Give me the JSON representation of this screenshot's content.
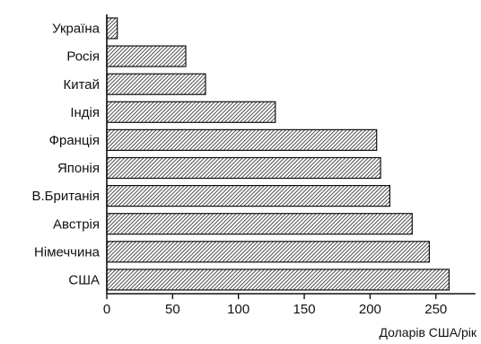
{
  "chart_data": {
    "type": "bar",
    "orientation": "horizontal",
    "categories": [
      "Україна",
      "Росія",
      "Китай",
      "Індія",
      "Франція",
      "Японія",
      "В.Британія",
      "Австрія",
      "Німеччина",
      "США"
    ],
    "values": [
      8,
      60,
      75,
      128,
      205,
      208,
      215,
      232,
      245,
      260
    ],
    "xlabel": "Доларів США/рік",
    "ylabel": "",
    "xlim": [
      0,
      280
    ],
    "xticks": [
      0,
      50,
      100,
      150,
      200,
      250
    ],
    "grid": false,
    "colors": {
      "bar_stroke": "#111111",
      "hatch": "#222222",
      "background": "#ffffff"
    }
  }
}
